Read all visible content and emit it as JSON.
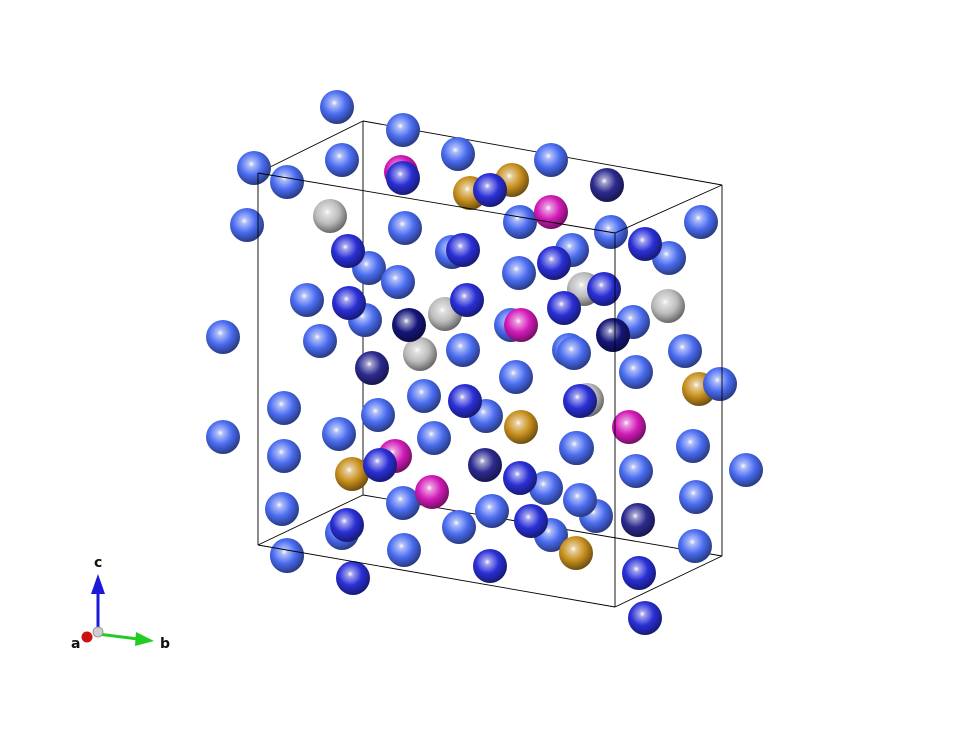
{
  "structure": {
    "species_colors": {
      "blue": "#4a6cf0",
      "deep_blue": "#2a2fd6",
      "navy": "#15157a",
      "dark_indigo": "#2c2a8e",
      "magenta": "#d21bb8",
      "gold": "#c8901e",
      "silver": "#bdbdbd"
    },
    "atom_counts": {
      "blue": 63,
      "deep_blue": 17,
      "navy": 3,
      "dark_indigo": 4,
      "magenta": 6,
      "gold": 6,
      "silver": 6
    },
    "cell_edge_color": "#000000"
  },
  "axes": {
    "a": {
      "label": "a",
      "color": "#cc1111"
    },
    "b": {
      "label": "b",
      "color": "#22cc22"
    },
    "c": {
      "label": "c",
      "color": "#1a1ad8"
    },
    "origin_color": "#cfcfcf"
  }
}
